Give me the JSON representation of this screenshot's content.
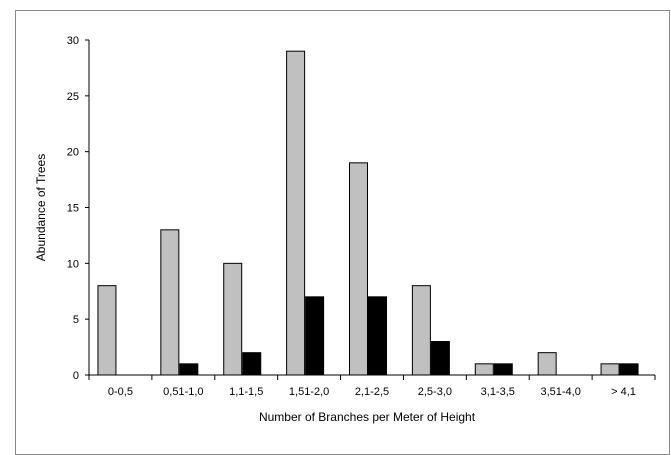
{
  "chart_data": {
    "type": "bar",
    "title": "",
    "xlabel": "Number of Branches per Meter of Height",
    "ylabel": "Abundance of Trees",
    "categories": [
      "0-0,5",
      "0,51-1,0",
      "1,1-1,5",
      "1,51-2,0",
      "2,1-2,5",
      "2,5-3,0",
      "3,1-3,5",
      "3,51-4,0",
      "> 4,1"
    ],
    "series": [
      {
        "values": [
          8,
          13,
          10,
          29,
          19,
          8,
          1,
          2,
          1
        ],
        "color": "#c0c0c0"
      },
      {
        "values": [
          0,
          1,
          2,
          7,
          7,
          3,
          1,
          0,
          1
        ],
        "color": "#000000"
      }
    ],
    "ylim": [
      0,
      30
    ],
    "yticks": [
      0,
      5,
      10,
      15,
      20,
      25,
      30
    ],
    "grid": false,
    "legend": "none"
  }
}
